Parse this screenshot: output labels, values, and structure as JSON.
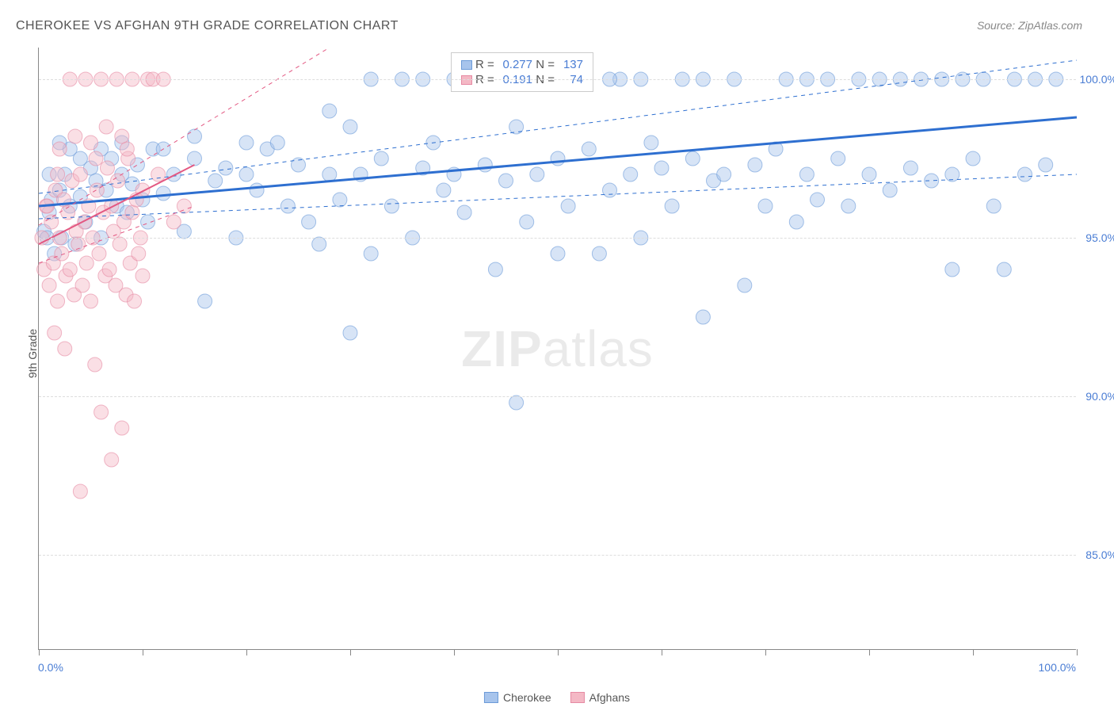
{
  "title": "CHEROKEE VS AFGHAN 9TH GRADE CORRELATION CHART",
  "source": "Source: ZipAtlas.com",
  "ylabel": "9th Grade",
  "watermark_bold": "ZIP",
  "watermark_rest": "atlas",
  "chart": {
    "type": "scatter",
    "xlim": [
      0,
      100
    ],
    "ylim": [
      82,
      101
    ],
    "ytick_values": [
      85,
      90,
      95,
      100
    ],
    "ytick_labels": [
      "85.0%",
      "90.0%",
      "95.0%",
      "100.0%"
    ],
    "xtick_values": [
      0,
      10,
      20,
      30,
      40,
      50,
      60,
      70,
      80,
      90,
      100
    ],
    "x_start_label": "0.0%",
    "x_end_label": "100.0%",
    "background_color": "#ffffff",
    "grid_color": "#dddddd",
    "marker_radius": 9,
    "marker_opacity": 0.45,
    "series": [
      {
        "name": "Cherokee",
        "color": "#a7c4ec",
        "stroke": "#6c9bd8",
        "trend": {
          "x1": 0,
          "y1": 96.0,
          "x2": 100,
          "y2": 98.8,
          "color": "#2e6fd0",
          "width": 3
        },
        "ci_upper": {
          "x1": 0,
          "y1": 96.4,
          "x2": 100,
          "y2": 100.6,
          "dash": true
        },
        "ci_lower": {
          "x1": 0,
          "y1": 95.6,
          "x2": 100,
          "y2": 97.0,
          "dash": true
        },
        "points": [
          [
            0.5,
            95.2
          ],
          [
            1,
            95.8
          ],
          [
            1.2,
            96.2
          ],
          [
            1.5,
            94.5
          ],
          [
            2,
            96.5
          ],
          [
            2.2,
            95.0
          ],
          [
            2.5,
            97.0
          ],
          [
            3,
            96.0
          ],
          [
            3.5,
            94.8
          ],
          [
            4,
            96.3
          ],
          [
            4.5,
            95.5
          ],
          [
            5,
            97.2
          ],
          [
            5.5,
            96.8
          ],
          [
            6,
            95.0
          ],
          [
            6.5,
            96.5
          ],
          [
            7,
            97.5
          ],
          [
            7.5,
            96.0
          ],
          [
            8,
            97.0
          ],
          [
            8.5,
            95.8
          ],
          [
            9,
            96.7
          ],
          [
            9.5,
            97.3
          ],
          [
            10,
            96.2
          ],
          [
            10.5,
            95.5
          ],
          [
            11,
            97.8
          ],
          [
            12,
            96.4
          ],
          [
            13,
            97.0
          ],
          [
            14,
            95.2
          ],
          [
            15,
            97.5
          ],
          [
            16,
            93.0
          ],
          [
            17,
            96.8
          ],
          [
            18,
            97.2
          ],
          [
            19,
            95.0
          ],
          [
            20,
            97.0
          ],
          [
            21,
            96.5
          ],
          [
            22,
            97.8
          ],
          [
            23,
            98.0
          ],
          [
            24,
            96.0
          ],
          [
            25,
            97.3
          ],
          [
            26,
            95.5
          ],
          [
            27,
            94.8
          ],
          [
            28,
            97.0
          ],
          [
            29,
            96.2
          ],
          [
            30,
            98.5
          ],
          [
            30,
            92.0
          ],
          [
            31,
            97.0
          ],
          [
            32,
            94.5
          ],
          [
            33,
            97.5
          ],
          [
            34,
            96.0
          ],
          [
            35,
            100.0
          ],
          [
            36,
            95.0
          ],
          [
            37,
            97.2
          ],
          [
            38,
            98.0
          ],
          [
            39,
            96.5
          ],
          [
            40,
            97.0
          ],
          [
            41,
            95.8
          ],
          [
            42,
            100.0
          ],
          [
            43,
            97.3
          ],
          [
            44,
            94.0
          ],
          [
            45,
            96.8
          ],
          [
            46,
            98.5
          ],
          [
            46,
            89.8
          ],
          [
            47,
            95.5
          ],
          [
            48,
            97.0
          ],
          [
            49,
            100.0
          ],
          [
            50,
            97.5
          ],
          [
            51,
            96.0
          ],
          [
            52,
            100.0
          ],
          [
            53,
            97.8
          ],
          [
            54,
            94.5
          ],
          [
            55,
            96.5
          ],
          [
            56,
            100.0
          ],
          [
            57,
            97.0
          ],
          [
            58,
            95.0
          ],
          [
            59,
            98.0
          ],
          [
            60,
            97.2
          ],
          [
            61,
            96.0
          ],
          [
            62,
            100.0
          ],
          [
            63,
            97.5
          ],
          [
            64,
            92.5
          ],
          [
            65,
            96.8
          ],
          [
            66,
            97.0
          ],
          [
            67,
            100.0
          ],
          [
            68,
            93.5
          ],
          [
            69,
            97.3
          ],
          [
            70,
            96.0
          ],
          [
            71,
            97.8
          ],
          [
            72,
            100.0
          ],
          [
            73,
            95.5
          ],
          [
            74,
            97.0
          ],
          [
            75,
            96.2
          ],
          [
            76,
            100.0
          ],
          [
            77,
            97.5
          ],
          [
            78,
            96.0
          ],
          [
            79,
            100.0
          ],
          [
            80,
            97.0
          ],
          [
            81,
            100.0
          ],
          [
            82,
            96.5
          ],
          [
            83,
            100.0
          ],
          [
            84,
            97.2
          ],
          [
            85,
            100.0
          ],
          [
            86,
            96.8
          ],
          [
            87,
            100.0
          ],
          [
            88,
            97.0
          ],
          [
            89,
            100.0
          ],
          [
            90,
            97.5
          ],
          [
            91,
            100.0
          ],
          [
            92,
            96.0
          ],
          [
            93,
            94.0
          ],
          [
            94,
            100.0
          ],
          [
            95,
            97.0
          ],
          [
            96,
            100.0
          ],
          [
            97,
            97.3
          ],
          [
            98,
            100.0
          ],
          [
            88,
            94.0
          ],
          [
            74,
            100.0
          ],
          [
            64,
            100.0
          ],
          [
            55,
            100.0
          ],
          [
            50,
            100.0
          ],
          [
            45,
            100.0
          ],
          [
            40,
            100.0
          ],
          [
            49,
            100.0
          ],
          [
            51,
            100.0
          ],
          [
            58,
            100.0
          ],
          [
            37,
            100.0
          ],
          [
            32,
            100.0
          ],
          [
            28,
            99.0
          ],
          [
            20,
            98.0
          ],
          [
            15,
            98.2
          ],
          [
            12,
            97.8
          ],
          [
            8,
            98.0
          ],
          [
            6,
            97.8
          ],
          [
            4,
            97.5
          ],
          [
            3,
            97.8
          ],
          [
            2,
            98.0
          ],
          [
            1,
            97.0
          ],
          [
            0.8,
            95.0
          ],
          [
            50,
            94.5
          ]
        ]
      },
      {
        "name": "Afghans",
        "color": "#f4b8c5",
        "stroke": "#e68aa3",
        "trend": {
          "x1": 0,
          "y1": 94.8,
          "x2": 15,
          "y2": 97.3,
          "color": "#e35882",
          "width": 2
        },
        "ci_upper": {
          "x1": 0,
          "y1": 95.4,
          "x2": 28,
          "y2": 101.0,
          "dash": true
        },
        "ci_lower": {
          "x1": 0,
          "y1": 94.2,
          "x2": 15,
          "y2": 96.0,
          "dash": true
        },
        "points": [
          [
            0.3,
            95.0
          ],
          [
            0.5,
            94.0
          ],
          [
            0.7,
            96.0
          ],
          [
            1.0,
            93.5
          ],
          [
            1.2,
            95.5
          ],
          [
            1.4,
            94.2
          ],
          [
            1.6,
            96.5
          ],
          [
            1.8,
            93.0
          ],
          [
            2.0,
            95.0
          ],
          [
            2.2,
            94.5
          ],
          [
            2.4,
            96.2
          ],
          [
            2.6,
            93.8
          ],
          [
            2.8,
            95.8
          ],
          [
            3.0,
            94.0
          ],
          [
            3.2,
            96.8
          ],
          [
            3.4,
            93.2
          ],
          [
            3.6,
            95.2
          ],
          [
            3.8,
            94.8
          ],
          [
            4.0,
            97.0
          ],
          [
            4.2,
            93.5
          ],
          [
            4.4,
            95.5
          ],
          [
            4.6,
            94.2
          ],
          [
            4.8,
            96.0
          ],
          [
            5.0,
            93.0
          ],
          [
            5.2,
            95.0
          ],
          [
            5.4,
            91.0
          ],
          [
            5.6,
            96.5
          ],
          [
            5.8,
            94.5
          ],
          [
            6.0,
            89.5
          ],
          [
            6.2,
            95.8
          ],
          [
            6.4,
            93.8
          ],
          [
            6.6,
            97.2
          ],
          [
            6.8,
            94.0
          ],
          [
            7.0,
            88.0
          ],
          [
            7.2,
            95.2
          ],
          [
            7.4,
            93.5
          ],
          [
            7.6,
            96.8
          ],
          [
            7.8,
            94.8
          ],
          [
            8.0,
            89.0
          ],
          [
            8.2,
            95.5
          ],
          [
            8.4,
            93.2
          ],
          [
            8.6,
            97.5
          ],
          [
            8.8,
            94.2
          ],
          [
            9.0,
            95.8
          ],
          [
            9.2,
            93.0
          ],
          [
            9.4,
            96.2
          ],
          [
            9.6,
            94.5
          ],
          [
            9.8,
            95.0
          ],
          [
            10.0,
            93.8
          ],
          [
            3.0,
            100.0
          ],
          [
            4.5,
            100.0
          ],
          [
            6.0,
            100.0
          ],
          [
            7.5,
            100.0
          ],
          [
            9.0,
            100.0
          ],
          [
            10.5,
            100.0
          ],
          [
            11.0,
            100.0
          ],
          [
            12.0,
            100.0
          ],
          [
            2.0,
            97.8
          ],
          [
            3.5,
            98.2
          ],
          [
            5.0,
            98.0
          ],
          [
            6.5,
            98.5
          ],
          [
            8.0,
            98.2
          ],
          [
            1.5,
            92.0
          ],
          [
            2.5,
            91.5
          ],
          [
            0.8,
            96.0
          ],
          [
            1.8,
            97.0
          ],
          [
            4.0,
            87.0
          ],
          [
            5.5,
            97.5
          ],
          [
            7.0,
            96.0
          ],
          [
            8.5,
            97.8
          ],
          [
            10.0,
            96.5
          ],
          [
            11.5,
            97.0
          ],
          [
            13.0,
            95.5
          ],
          [
            14.0,
            96.0
          ]
        ]
      }
    ]
  },
  "stats": {
    "rows": [
      {
        "swatch_fill": "#a7c4ec",
        "swatch_stroke": "#6c9bd8",
        "r_label": "R =",
        "r": "0.277",
        "n_label": "N =",
        "n": "137"
      },
      {
        "swatch_fill": "#f4b8c5",
        "swatch_stroke": "#e68aa3",
        "r_label": "R =",
        "r": "0.191",
        "n_label": "N =",
        "n": "74"
      }
    ]
  },
  "legend": {
    "items": [
      {
        "label": "Cherokee",
        "fill": "#a7c4ec",
        "stroke": "#6c9bd8"
      },
      {
        "label": "Afghans",
        "fill": "#f4b8c5",
        "stroke": "#e68aa3"
      }
    ]
  }
}
